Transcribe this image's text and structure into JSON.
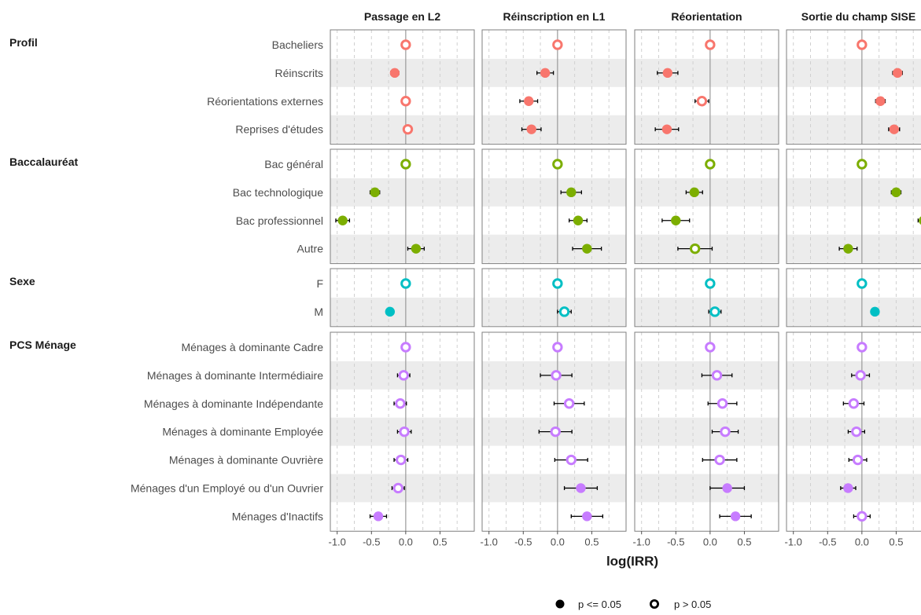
{
  "chart_data": {
    "type": "scatter",
    "xlabel": "log(IRR)",
    "xlim": [
      -1.1,
      1.0
    ],
    "x_ticks": [
      -1.0,
      -0.5,
      0.0,
      0.5
    ],
    "x_tick_labels": [
      "-1.0",
      "-0.5",
      "0.0",
      "0.5"
    ],
    "grid": true,
    "legend_placement": "bottom",
    "legend": [
      {
        "shape": "filled",
        "label": "p <= 0.05"
      },
      {
        "shape": "hollow",
        "label": "p > 0.05"
      }
    ],
    "facets": [
      "Passage en L2",
      "Réinscription en L1",
      "Réorientation",
      "Sortie du champ SISE"
    ],
    "groups": [
      {
        "name": "Profil",
        "color": "#F8766D",
        "rows": [
          {
            "label": "Bacheliers",
            "points": [
              {
                "x": 0.0,
                "lo": 0.0,
                "hi": 0.0,
                "sig": false
              },
              {
                "x": 0.0,
                "lo": 0.0,
                "hi": 0.0,
                "sig": false
              },
              {
                "x": 0.0,
                "lo": 0.0,
                "hi": 0.0,
                "sig": false
              },
              {
                "x": 0.0,
                "lo": 0.0,
                "hi": 0.0,
                "sig": false
              }
            ]
          },
          {
            "label": "Réinscrits",
            "points": [
              {
                "x": -0.16,
                "lo": -0.22,
                "hi": -0.1,
                "sig": true
              },
              {
                "x": -0.18,
                "lo": -0.3,
                "hi": -0.06,
                "sig": true
              },
              {
                "x": -0.62,
                "lo": -0.77,
                "hi": -0.47,
                "sig": true
              },
              {
                "x": 0.52,
                "lo": 0.45,
                "hi": 0.59,
                "sig": true
              }
            ]
          },
          {
            "label": "Réorientations externes",
            "points": [
              {
                "x": 0.0,
                "lo": -0.06,
                "hi": 0.06,
                "sig": false
              },
              {
                "x": -0.42,
                "lo": -0.55,
                "hi": -0.29,
                "sig": true
              },
              {
                "x": -0.12,
                "lo": -0.22,
                "hi": -0.02,
                "sig": false
              },
              {
                "x": 0.27,
                "lo": 0.2,
                "hi": 0.34,
                "sig": true
              }
            ]
          },
          {
            "label": "Reprises d'études",
            "points": [
              {
                "x": 0.03,
                "lo": -0.03,
                "hi": 0.09,
                "sig": false
              },
              {
                "x": -0.38,
                "lo": -0.52,
                "hi": -0.24,
                "sig": true
              },
              {
                "x": -0.63,
                "lo": -0.8,
                "hi": -0.46,
                "sig": true
              },
              {
                "x": 0.47,
                "lo": 0.39,
                "hi": 0.55,
                "sig": true
              }
            ]
          }
        ]
      },
      {
        "name": "Baccalauréat",
        "color": "#7CAE00",
        "rows": [
          {
            "label": "Bac général",
            "points": [
              {
                "x": 0.0,
                "lo": 0.0,
                "hi": 0.0,
                "sig": false
              },
              {
                "x": 0.0,
                "lo": 0.0,
                "hi": 0.0,
                "sig": false
              },
              {
                "x": 0.0,
                "lo": 0.0,
                "hi": 0.0,
                "sig": false
              },
              {
                "x": 0.0,
                "lo": 0.0,
                "hi": 0.0,
                "sig": false
              }
            ]
          },
          {
            "label": "Bac technologique",
            "points": [
              {
                "x": -0.45,
                "lo": -0.52,
                "hi": -0.38,
                "sig": true
              },
              {
                "x": 0.2,
                "lo": 0.05,
                "hi": 0.35,
                "sig": true
              },
              {
                "x": -0.23,
                "lo": -0.35,
                "hi": -0.11,
                "sig": true
              },
              {
                "x": 0.5,
                "lo": 0.43,
                "hi": 0.57,
                "sig": true
              }
            ]
          },
          {
            "label": "Bac professionnel",
            "points": [
              {
                "x": -0.92,
                "lo": -1.02,
                "hi": -0.82,
                "sig": true
              },
              {
                "x": 0.3,
                "lo": 0.17,
                "hi": 0.43,
                "sig": true
              },
              {
                "x": -0.5,
                "lo": -0.7,
                "hi": -0.3,
                "sig": true
              },
              {
                "x": 0.9,
                "lo": 0.82,
                "hi": 0.98,
                "sig": true
              }
            ]
          },
          {
            "label": "Autre",
            "points": [
              {
                "x": 0.15,
                "lo": 0.03,
                "hi": 0.27,
                "sig": true
              },
              {
                "x": 0.43,
                "lo": 0.22,
                "hi": 0.64,
                "sig": true
              },
              {
                "x": -0.22,
                "lo": -0.47,
                "hi": 0.03,
                "sig": false
              },
              {
                "x": -0.2,
                "lo": -0.33,
                "hi": -0.07,
                "sig": true
              }
            ]
          }
        ]
      },
      {
        "name": "Sexe",
        "color": "#00BFC4",
        "rows": [
          {
            "label": "F",
            "points": [
              {
                "x": 0.0,
                "lo": 0.0,
                "hi": 0.0,
                "sig": false
              },
              {
                "x": 0.0,
                "lo": 0.0,
                "hi": 0.0,
                "sig": false
              },
              {
                "x": 0.0,
                "lo": 0.0,
                "hi": 0.0,
                "sig": false
              },
              {
                "x": 0.0,
                "lo": 0.0,
                "hi": 0.0,
                "sig": false
              }
            ]
          },
          {
            "label": "M",
            "points": [
              {
                "x": -0.23,
                "lo": -0.27,
                "hi": -0.19,
                "sig": true
              },
              {
                "x": 0.1,
                "lo": 0.0,
                "hi": 0.2,
                "sig": false
              },
              {
                "x": 0.07,
                "lo": -0.02,
                "hi": 0.16,
                "sig": false
              },
              {
                "x": 0.19,
                "lo": 0.15,
                "hi": 0.23,
                "sig": true
              }
            ]
          }
        ]
      },
      {
        "name": "PCS Ménage",
        "color": "#C77CFF",
        "rows": [
          {
            "label": "Ménages à dominante Cadre",
            "points": [
              {
                "x": 0.0,
                "lo": 0.0,
                "hi": 0.0,
                "sig": false
              },
              {
                "x": 0.0,
                "lo": 0.0,
                "hi": 0.0,
                "sig": false
              },
              {
                "x": 0.0,
                "lo": 0.0,
                "hi": 0.0,
                "sig": false
              },
              {
                "x": 0.0,
                "lo": 0.0,
                "hi": 0.0,
                "sig": false
              }
            ]
          },
          {
            "label": "Ménages à dominante Intermédiaire",
            "points": [
              {
                "x": -0.03,
                "lo": -0.12,
                "hi": 0.06,
                "sig": false
              },
              {
                "x": -0.02,
                "lo": -0.25,
                "hi": 0.21,
                "sig": false
              },
              {
                "x": 0.1,
                "lo": -0.12,
                "hi": 0.32,
                "sig": false
              },
              {
                "x": -0.02,
                "lo": -0.15,
                "hi": 0.11,
                "sig": false
              }
            ]
          },
          {
            "label": "Ménages à dominante Indépendante",
            "points": [
              {
                "x": -0.08,
                "lo": -0.17,
                "hi": 0.01,
                "sig": false
              },
              {
                "x": 0.17,
                "lo": -0.05,
                "hi": 0.39,
                "sig": false
              },
              {
                "x": 0.18,
                "lo": -0.03,
                "hi": 0.39,
                "sig": false
              },
              {
                "x": -0.12,
                "lo": -0.27,
                "hi": 0.03,
                "sig": false
              }
            ]
          },
          {
            "label": "Ménages à dominante Employée",
            "points": [
              {
                "x": -0.02,
                "lo": -0.12,
                "hi": 0.08,
                "sig": false
              },
              {
                "x": -0.03,
                "lo": -0.27,
                "hi": 0.21,
                "sig": false
              },
              {
                "x": 0.22,
                "lo": 0.03,
                "hi": 0.41,
                "sig": false
              },
              {
                "x": -0.08,
                "lo": -0.2,
                "hi": 0.04,
                "sig": false
              }
            ]
          },
          {
            "label": "Ménages à dominante Ouvrière",
            "points": [
              {
                "x": -0.07,
                "lo": -0.17,
                "hi": 0.03,
                "sig": false
              },
              {
                "x": 0.2,
                "lo": -0.04,
                "hi": 0.44,
                "sig": false
              },
              {
                "x": 0.14,
                "lo": -0.11,
                "hi": 0.39,
                "sig": false
              },
              {
                "x": -0.06,
                "lo": -0.19,
                "hi": 0.07,
                "sig": false
              }
            ]
          },
          {
            "label": "Ménages d'un Employé ou d'un Ouvrier",
            "points": [
              {
                "x": -0.11,
                "lo": -0.2,
                "hi": -0.02,
                "sig": false
              },
              {
                "x": 0.34,
                "lo": 0.1,
                "hi": 0.58,
                "sig": true
              },
              {
                "x": 0.25,
                "lo": 0.0,
                "hi": 0.5,
                "sig": true
              },
              {
                "x": -0.2,
                "lo": -0.31,
                "hi": -0.09,
                "sig": true
              }
            ]
          },
          {
            "label": "Ménages d'Inactifs",
            "points": [
              {
                "x": -0.4,
                "lo": -0.52,
                "hi": -0.28,
                "sig": true
              },
              {
                "x": 0.43,
                "lo": 0.2,
                "hi": 0.66,
                "sig": true
              },
              {
                "x": 0.37,
                "lo": 0.14,
                "hi": 0.6,
                "sig": true
              },
              {
                "x": 0.0,
                "lo": -0.12,
                "hi": 0.12,
                "sig": false
              }
            ]
          }
        ]
      }
    ]
  }
}
